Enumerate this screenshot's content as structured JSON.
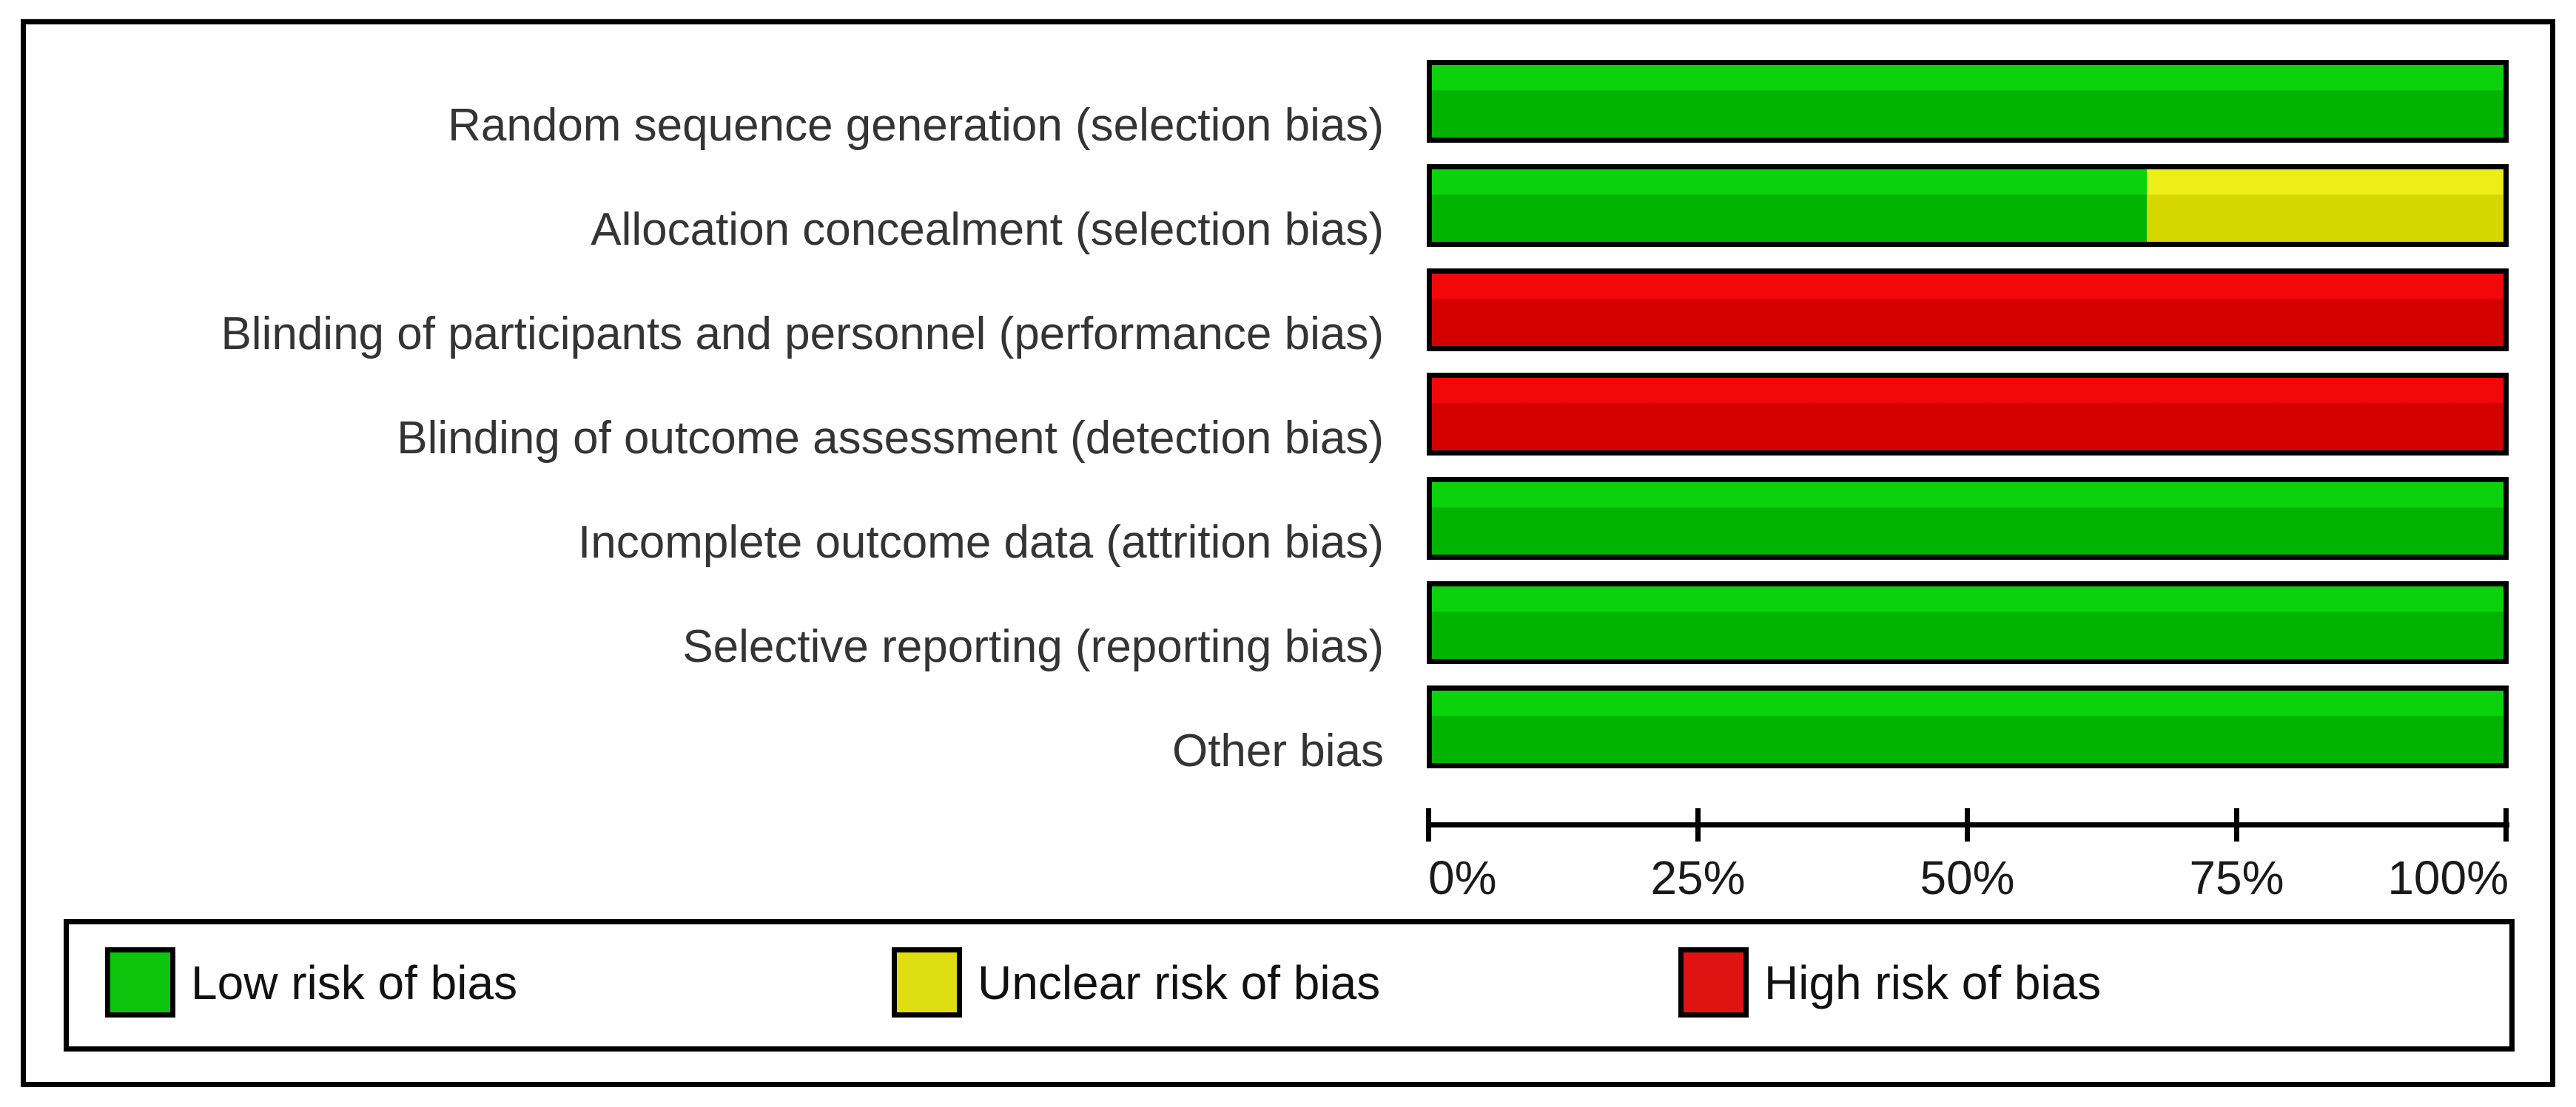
{
  "figure_kind": "risk-of-bias-graph",
  "chart_data": {
    "type": "bar",
    "orientation": "horizontal-stacked",
    "title": "",
    "xlabel": "",
    "ylabel": "",
    "xlim": [
      0,
      100
    ],
    "grid": false,
    "legend_position": "bottom",
    "categories": [
      "Random sequence generation (selection bias)",
      "Allocation concealment (selection bias)",
      "Blinding of participants and personnel (performance bias)",
      "Blinding of outcome assessment (detection bias)",
      "Incomplete outcome data (attrition bias)",
      "Selective reporting (reporting bias)",
      "Other bias"
    ],
    "series": [
      {
        "name": "Low risk of bias",
        "key": "low",
        "values": [
          100,
          66.7,
          0,
          0,
          100,
          100,
          100
        ]
      },
      {
        "name": "Unclear risk of bias",
        "key": "unclear",
        "values": [
          0,
          33.3,
          0,
          0,
          0,
          0,
          0
        ]
      },
      {
        "name": "High risk of bias",
        "key": "high",
        "values": [
          0,
          0,
          100,
          100,
          0,
          0,
          0
        ]
      }
    ],
    "xticks": [
      "0%",
      "25%",
      "50%",
      "75%",
      "100%"
    ],
    "colors": {
      "low": {
        "top": "#0bd30b",
        "bottom": "#00b400",
        "swatch": "#0cc40c"
      },
      "unclear": {
        "top": "#eded18",
        "bottom": "#d6d600",
        "swatch": "#dedd12"
      },
      "high": {
        "top": "#f20808",
        "bottom": "#d40000",
        "swatch": "#e11212"
      }
    }
  }
}
